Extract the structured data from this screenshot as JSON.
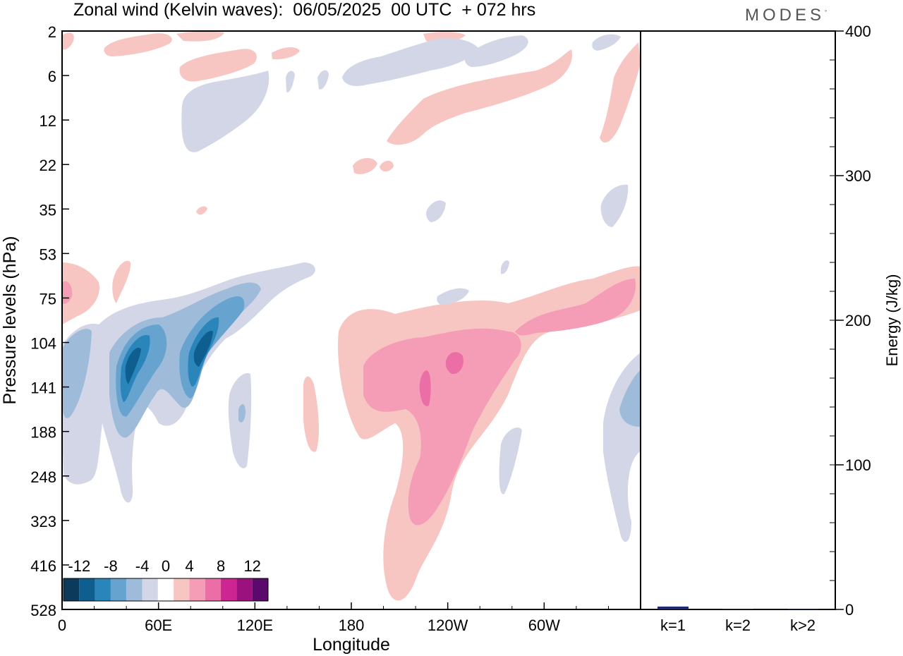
{
  "header": {
    "title": "Zonal wind (Kelvin waves):  06/05/2025  00 UTC  + 072 hrs",
    "brand": "MODES",
    "brand_mark": "°"
  },
  "colors": {
    "neg_max": "#0b3a5a",
    "neg_min": "#d3d6e6",
    "pos_min": "#f8c6c2",
    "pos_max": "#5a0a6a",
    "energy_bar": "#1f2a6e"
  },
  "chart_data": [
    {
      "type": "heatmap",
      "title": "Zonal wind (Kelvin waves):  06/05/2025  00 UTC  + 072 hrs",
      "xlabel": "Longitude",
      "ylabel": "Pressure levels (hPa)",
      "x_ticks": [
        "0",
        "60E",
        "120E",
        "180",
        "120W",
        "60W"
      ],
      "y_ticks": [
        "2",
        "6",
        "12",
        "22",
        "35",
        "53",
        "75",
        "104",
        "141",
        "188",
        "248",
        "323",
        "416",
        "528"
      ],
      "colorbar": {
        "labels": [
          "-12",
          "-8",
          "-4",
          "0",
          "4",
          "8",
          "12"
        ],
        "levels": [
          -14,
          -12,
          -10,
          -8,
          -6,
          -4,
          -2,
          2,
          4,
          6,
          8,
          10,
          12,
          14
        ],
        "colors": [
          "#0b3a5a",
          "#0e5f8f",
          "#2a85bb",
          "#66a4cf",
          "#9fbbda",
          "#d3d6e6",
          "#ffffff",
          "#f8c6c2",
          "#f59db6",
          "#ec6ea6",
          "#cd2592",
          "#9b127f",
          "#5a0a6a"
        ]
      },
      "features": [
        {
          "sign": "negative",
          "min_value": -12,
          "lon_range": [
            35,
            45
          ],
          "p_range": [
            104,
            188
          ]
        },
        {
          "sign": "negative",
          "min_value": -12,
          "lon_range": [
            75,
            95
          ],
          "p_range": [
            90,
            141
          ]
        },
        {
          "sign": "negative",
          "min_value": -6,
          "lon_range": [
            0,
            20
          ],
          "p_range": [
            104,
            188
          ]
        },
        {
          "sign": "negative",
          "min_value": -6,
          "lon_range": [
            345,
            360
          ],
          "p_range": [
            120,
            188
          ]
        },
        {
          "sign": "positive",
          "max_value": 8,
          "lon_range": [
            210,
            235
          ],
          "p_range": [
            104,
            188
          ]
        },
        {
          "sign": "positive",
          "max_value": 6,
          "lon_range": [
            200,
            215
          ],
          "p_range": [
            248,
            416
          ]
        },
        {
          "sign": "positive",
          "max_value": 6,
          "lon_range": [
            320,
            360
          ],
          "p_range": [
            60,
            104
          ]
        },
        {
          "sign": "positive",
          "max_value": 4,
          "lon_range": [
            0,
            5
          ],
          "p_range": [
            53,
            104
          ]
        }
      ]
    },
    {
      "type": "bar",
      "categories": [
        "k=1",
        "k=2",
        "k>2"
      ],
      "values": [
        2,
        0.5,
        0.3
      ],
      "ylabel": "Energy (J/kg)",
      "y_ticks": [
        "0",
        "100",
        "200",
        "300",
        "400"
      ],
      "ylim": [
        0,
        400
      ]
    }
  ]
}
